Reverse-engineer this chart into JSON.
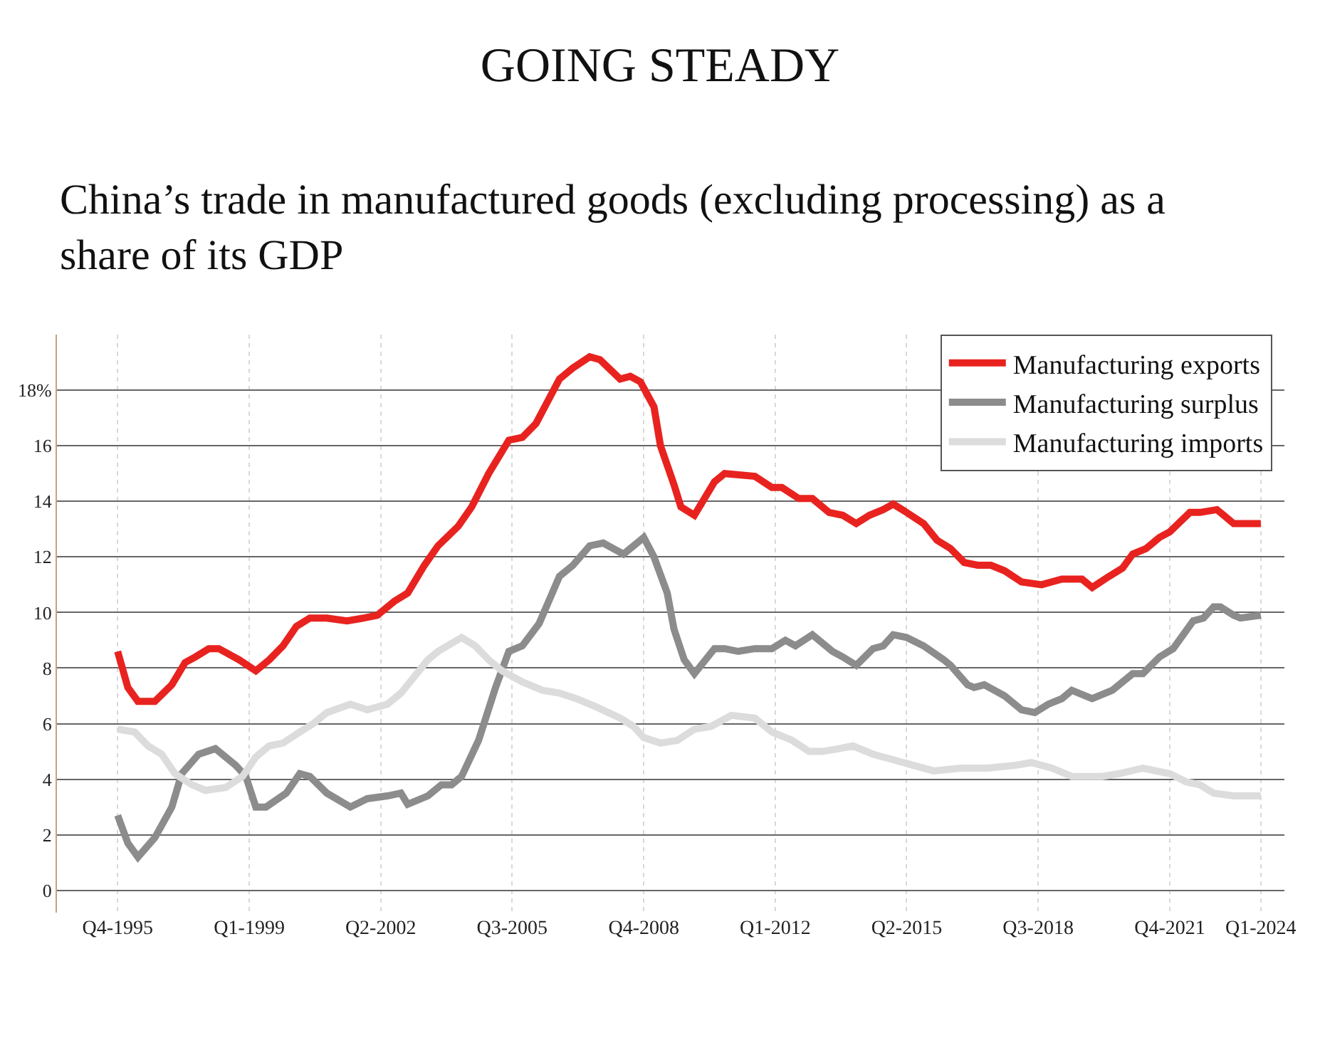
{
  "chart_data": {
    "type": "line",
    "title": "GOING STEADY",
    "subtitle": "China’s trade in manufactured goods (excluding processing) as a share of its GDP",
    "xlim": [
      "1994-04",
      "2024-08"
    ],
    "xticks": [
      {
        "value": "1995-10",
        "label": "Q4-1995"
      },
      {
        "value": "1999-01",
        "label": "Q1-1999"
      },
      {
        "value": "2002-04",
        "label": "Q2-2002"
      },
      {
        "value": "2005-07",
        "label": "Q3-2005"
      },
      {
        "value": "2008-10",
        "label": "Q4-2008"
      },
      {
        "value": "2012-01",
        "label": "Q1-2012"
      },
      {
        "value": "2015-04",
        "label": "Q2-2015"
      },
      {
        "value": "2018-07",
        "label": "Q3-2018"
      },
      {
        "value": "2021-10",
        "label": "Q4-2021"
      },
      {
        "value": "2024-01",
        "label": "Q1-2024"
      }
    ],
    "ylim": [
      -0.8,
      20
    ],
    "yticks": [
      0,
      2,
      4,
      6,
      8,
      10,
      12,
      14,
      16,
      {
        "value": 18,
        "label": "18%"
      }
    ],
    "grid": true,
    "legend": "top right",
    "marker": "none",
    "line_style": "solid",
    "series": [
      {
        "name": "Manufacturing exports",
        "color": "#e8231f",
        "x": [
          "1995-10",
          "1996-01",
          "1996-04",
          "1996-09",
          "1997-02",
          "1997-06",
          "1997-09",
          "1998-01",
          "1998-04",
          "1998-10",
          "1999-03",
          "1999-07",
          "1999-11",
          "2000-03",
          "2000-07",
          "2000-12",
          "2001-06",
          "2001-11",
          "2002-03",
          "2002-08",
          "2002-12",
          "2003-05",
          "2003-09",
          "2004-03",
          "2004-07",
          "2004-12",
          "2005-06",
          "2005-10",
          "2006-02",
          "2006-09",
          "2007-01",
          "2007-06",
          "2007-09",
          "2008-03",
          "2008-06",
          "2008-09",
          "2009-01",
          "2009-03",
          "2009-07",
          "2009-09",
          "2010-01",
          "2010-07",
          "2010-10",
          "2011-07",
          "2011-12",
          "2012-03",
          "2012-08",
          "2012-12",
          "2013-05",
          "2013-09",
          "2014-01",
          "2014-05",
          "2014-09",
          "2014-12",
          "2015-04",
          "2015-09",
          "2016-01",
          "2016-05",
          "2016-09",
          "2017-01",
          "2017-05",
          "2017-09",
          "2018-02",
          "2018-08",
          "2019-02",
          "2019-08",
          "2019-11",
          "2020-04",
          "2020-08",
          "2020-11",
          "2021-03",
          "2021-07",
          "2021-10",
          "2022-04",
          "2022-07",
          "2022-12",
          "2023-02",
          "2023-05",
          "2023-08",
          "2024-01"
        ],
        "values": [
          8.6,
          7.3,
          6.8,
          6.8,
          7.4,
          8.2,
          8.4,
          8.7,
          8.7,
          8.3,
          7.9,
          8.3,
          8.8,
          9.5,
          9.8,
          9.8,
          9.7,
          9.8,
          9.9,
          10.4,
          10.7,
          11.7,
          12.4,
          13.1,
          13.8,
          15.0,
          16.2,
          16.3,
          16.8,
          18.4,
          18.8,
          19.2,
          19.1,
          18.4,
          18.5,
          18.3,
          17.4,
          16.0,
          14.6,
          13.8,
          13.5,
          14.7,
          15.0,
          14.9,
          14.5,
          14.5,
          14.1,
          14.1,
          13.6,
          13.5,
          13.2,
          13.5,
          13.7,
          13.9,
          13.6,
          13.2,
          12.6,
          12.3,
          11.8,
          11.7,
          11.7,
          11.5,
          11.1,
          11.0,
          11.2,
          11.2,
          10.9,
          11.3,
          11.6,
          12.1,
          12.3,
          12.7,
          12.9,
          13.6,
          13.6,
          13.7,
          13.5,
          13.2,
          13.2,
          13.2
        ]
      },
      {
        "name": "Manufacturing surplus",
        "color": "#8c8c8c",
        "x": [
          "1995-10",
          "1996-01",
          "1996-04",
          "1996-09",
          "1997-02",
          "1997-05",
          "1997-10",
          "1998-03",
          "1998-09",
          "1998-12",
          "1999-03",
          "1999-06",
          "1999-12",
          "2000-04",
          "2000-07",
          "2000-12",
          "2001-07",
          "2001-12",
          "2002-06",
          "2002-10",
          "2002-12",
          "2003-06",
          "2003-10",
          "2004-01",
          "2004-04",
          "2004-09",
          "2005-02",
          "2005-06",
          "2005-10",
          "2006-03",
          "2006-09",
          "2007-01",
          "2007-06",
          "2007-10",
          "2008-04",
          "2008-10",
          "2009-01",
          "2009-05",
          "2009-07",
          "2009-10",
          "2010-01",
          "2010-07",
          "2010-10",
          "2011-02",
          "2011-07",
          "2011-12",
          "2012-04",
          "2012-07",
          "2012-12",
          "2013-06",
          "2013-09",
          "2014-01",
          "2014-06",
          "2014-09",
          "2014-12",
          "2015-04",
          "2015-09",
          "2016-03",
          "2016-05",
          "2016-10",
          "2016-12",
          "2017-03",
          "2017-06",
          "2017-09",
          "2018-02",
          "2018-06",
          "2018-10",
          "2019-02",
          "2019-05",
          "2019-11",
          "2020-05",
          "2020-11",
          "2021-02",
          "2021-07",
          "2021-11",
          "2022-05",
          "2022-08",
          "2022-11",
          "2023-01",
          "2023-05",
          "2023-07",
          "2024-01"
        ],
        "values": [
          2.7,
          1.7,
          1.2,
          1.9,
          3.0,
          4.2,
          4.9,
          5.1,
          4.5,
          4.1,
          3.0,
          3.0,
          3.5,
          4.2,
          4.1,
          3.5,
          3.0,
          3.3,
          3.4,
          3.5,
          3.1,
          3.4,
          3.8,
          3.8,
          4.1,
          5.4,
          7.3,
          8.6,
          8.8,
          9.6,
          11.3,
          11.7,
          12.4,
          12.5,
          12.1,
          12.7,
          12.0,
          10.7,
          9.4,
          8.3,
          7.8,
          8.7,
          8.7,
          8.6,
          8.7,
          8.7,
          9.0,
          8.8,
          9.2,
          8.6,
          8.4,
          8.1,
          8.7,
          8.8,
          9.2,
          9.1,
          8.8,
          8.3,
          8.1,
          7.4,
          7.3,
          7.4,
          7.2,
          7.0,
          6.5,
          6.4,
          6.7,
          6.9,
          7.2,
          6.9,
          7.2,
          7.8,
          7.8,
          8.4,
          8.7,
          9.7,
          9.8,
          10.2,
          10.2,
          9.9,
          9.8,
          9.9
        ]
      },
      {
        "name": "Manufacturing imports",
        "color": "#dcdcdc",
        "x": [
          "1995-10",
          "1996-03",
          "1996-07",
          "1996-11",
          "1997-03",
          "1997-08",
          "1997-12",
          "1998-06",
          "1998-11",
          "1999-03",
          "1999-07",
          "1999-11",
          "2000-04",
          "2000-08",
          "2000-12",
          "2001-07",
          "2001-12",
          "2002-06",
          "2002-10",
          "2003-02",
          "2003-06",
          "2003-09",
          "2004-04",
          "2004-08",
          "2004-12",
          "2005-04",
          "2005-10",
          "2006-04",
          "2006-09",
          "2007-02",
          "2007-08",
          "2008-03",
          "2008-07",
          "2008-10",
          "2009-03",
          "2009-08",
          "2010-01",
          "2010-06",
          "2010-12",
          "2011-07",
          "2011-12",
          "2012-06",
          "2012-11",
          "2013-03",
          "2013-08",
          "2013-12",
          "2014-06",
          "2014-12",
          "2015-06",
          "2015-12",
          "2016-08",
          "2017-04",
          "2017-12",
          "2018-05",
          "2018-11",
          "2019-05",
          "2020-02",
          "2020-07",
          "2021-02",
          "2021-10",
          "2022-03",
          "2022-07",
          "2022-11",
          "2023-05",
          "2024-01"
        ],
        "values": [
          5.8,
          5.7,
          5.2,
          4.9,
          4.2,
          3.8,
          3.6,
          3.7,
          4.1,
          4.8,
          5.2,
          5.3,
          5.7,
          6.0,
          6.4,
          6.7,
          6.5,
          6.7,
          7.1,
          7.7,
          8.3,
          8.6,
          9.1,
          8.8,
          8.3,
          7.9,
          7.5,
          7.2,
          7.1,
          6.9,
          6.6,
          6.2,
          5.9,
          5.5,
          5.3,
          5.4,
          5.8,
          5.9,
          6.3,
          6.2,
          5.7,
          5.4,
          5.0,
          5.0,
          5.1,
          5.2,
          4.9,
          4.7,
          4.5,
          4.3,
          4.4,
          4.4,
          4.5,
          4.6,
          4.4,
          4.1,
          4.1,
          4.2,
          4.4,
          4.2,
          3.9,
          3.8,
          3.5,
          3.4,
          3.4
        ]
      }
    ]
  }
}
